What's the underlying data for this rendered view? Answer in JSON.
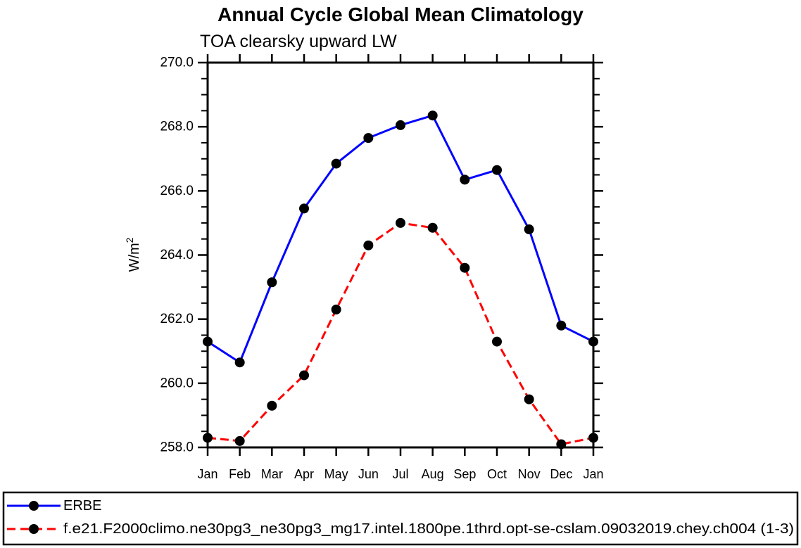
{
  "chart_data": {
    "type": "line",
    "title": "Annual Cycle Global Mean Climatology",
    "subtitle": "TOA clearsky upward LW",
    "ylabel": "W/m^2",
    "ylabel_main": "W/m",
    "ylabel_sup": "2",
    "categories": [
      "Jan",
      "Feb",
      "Mar",
      "Apr",
      "May",
      "Jun",
      "Jul",
      "Aug",
      "Sep",
      "Oct",
      "Nov",
      "Dec",
      "Jan"
    ],
    "ylim": [
      258.0,
      270.0
    ],
    "y_major_ticks": [
      270.0,
      268.0,
      266.0,
      264.0,
      262.0,
      260.0,
      258.0
    ],
    "y_tick_labels": [
      "270.0",
      "268.0",
      "266.0",
      "264.0",
      "262.0",
      "260.0",
      "258.0"
    ],
    "y_minor_step": 0.5,
    "grid": false,
    "legend_position": "bottom-box",
    "axis_color": "#000000",
    "marker_color": "#000000",
    "marker": "filled-circle",
    "series": [
      {
        "name": "ERBE",
        "color": "#0000ff",
        "line_style": "solid",
        "values": [
          261.3,
          260.65,
          263.15,
          265.45,
          266.85,
          267.65,
          268.05,
          268.35,
          266.35,
          266.65,
          264.8,
          261.8,
          261.3
        ]
      },
      {
        "name": "f.e21.F2000climo.ne30pg3_ne30pg3_mg17.intel.1800pe.1thrd.opt-se-cslam.09032019.chey.ch004 (1-3)",
        "color": "#ff0000",
        "line_style": "dashed",
        "values": [
          258.3,
          258.2,
          259.3,
          260.25,
          262.3,
          264.3,
          265.0,
          264.85,
          263.6,
          261.3,
          259.5,
          258.1,
          258.3
        ]
      }
    ]
  }
}
